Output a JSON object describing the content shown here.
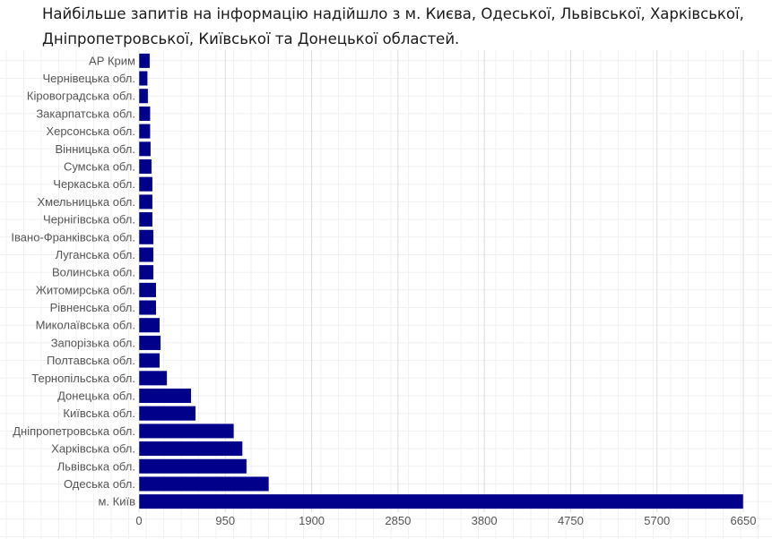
{
  "chart_data": {
    "type": "bar",
    "orientation": "horizontal",
    "title": "Найбільше запитів на інформацію надійшло з м. Києва, Одеської, Львівської, Харківської, Дніпропетровської, Київської та Донецької областей.",
    "xlabel": "",
    "ylabel": "",
    "xlim": [
      0,
      6650
    ],
    "x_ticks": [
      0,
      950,
      1900,
      2850,
      3800,
      4750,
      5700,
      6650
    ],
    "grid": true,
    "bar_color": "#00008b",
    "categories": [
      "АР Крим",
      "Чернівецька обл.",
      "Кіровоградська обл.",
      "Закарпатська обл.",
      "Херсонська обл.",
      "Вінницька обл.",
      "Сумська обл.",
      "Черкаська обл.",
      "Хмельницька обл.",
      "Чернігівська обл.",
      "Івано-Франківська обл.",
      "Луганська обл.",
      "Волинська обл.",
      "Житомирська обл.",
      "Рівненська обл.",
      "Миколаївська обл.",
      "Запорізька обл.",
      "Полтавська обл.",
      "Тернопільська обл.",
      "Донецька обл.",
      "Київська обл.",
      "Дніпропетровська обл.",
      "Харківська обл.",
      "Львівська обл.",
      "Одеська обл.",
      "м. Київ"
    ],
    "values": [
      120,
      95,
      100,
      125,
      125,
      130,
      140,
      150,
      150,
      150,
      160,
      160,
      160,
      190,
      190,
      230,
      240,
      230,
      310,
      575,
      625,
      1045,
      1140,
      1185,
      1430,
      6650
    ]
  }
}
